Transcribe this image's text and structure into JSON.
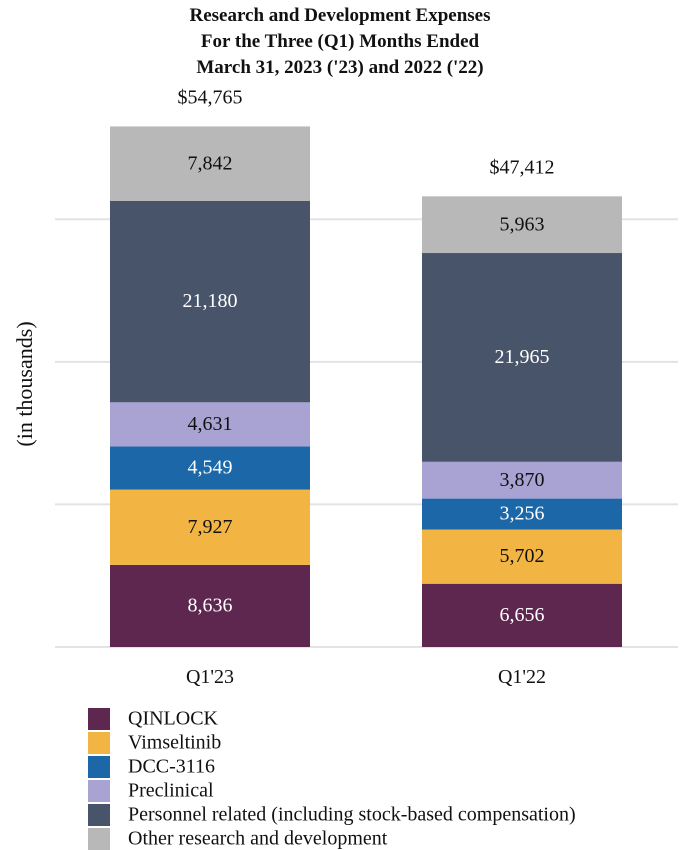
{
  "chart_data": {
    "type": "bar",
    "stacked": true,
    "title": [
      "Research and Development Expenses",
      "For the Three (Q1) Months Ended",
      "March 31, 2023 ('23) and 2022 ('22)"
    ],
    "xlabel": "",
    "ylabel": "(in thousands)",
    "ylim": [
      0,
      58000
    ],
    "gridlines": [
      0,
      15000,
      30000,
      45000
    ],
    "categories": [
      "Q1'23",
      "Q1'22"
    ],
    "totals": [
      "$54,765",
      "$47,412"
    ],
    "legend_position": "bottom-left",
    "series": [
      {
        "name": "QINLOCK",
        "color": "#5e2750",
        "label_color": "#ffffff",
        "values": [
          8636,
          6656
        ],
        "labels": [
          "8,636",
          "6,656"
        ]
      },
      {
        "name": "Vimseltinib",
        "color": "#f2b544",
        "label_color": "#111111",
        "values": [
          7927,
          5702
        ],
        "labels": [
          "7,927",
          "5,702"
        ]
      },
      {
        "name": "DCC-3116",
        "color": "#1b67a8",
        "label_color": "#ffffff",
        "values": [
          4549,
          3256
        ],
        "labels": [
          "4,549",
          "3,256"
        ]
      },
      {
        "name": "Preclinical",
        "color": "#a9a3d4",
        "label_color": "#111111",
        "values": [
          4631,
          3870
        ],
        "labels": [
          "4,631",
          "3,870"
        ]
      },
      {
        "name": "Personnel related (including stock-based compensation)",
        "color": "#48546a",
        "label_color": "#ffffff",
        "values": [
          21180,
          21965
        ],
        "labels": [
          "21,180",
          "21,965"
        ]
      },
      {
        "name": "Other research and development",
        "color": "#b8b8b8",
        "label_color": "#111111",
        "values": [
          7842,
          5963
        ],
        "labels": [
          "7,842",
          "5,963"
        ]
      }
    ]
  }
}
